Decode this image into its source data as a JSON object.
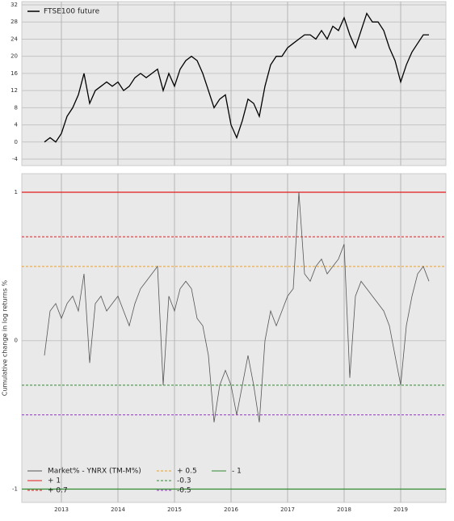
{
  "chart_data": [
    {
      "type": "line",
      "legend": "upper left",
      "grid": true,
      "xlim": [
        2012.3,
        2019.8
      ],
      "xticks": [
        2013,
        2014,
        2015,
        2016,
        2017,
        2018,
        2019
      ],
      "ylim": [
        -5.5,
        32.75
      ],
      "yticks": [
        -4,
        0,
        4,
        8,
        12,
        16,
        20,
        24,
        28,
        32
      ],
      "x": [
        2012.7,
        2012.8,
        2012.9,
        2013.0,
        2013.1,
        2013.2,
        2013.3,
        2013.4,
        2013.5,
        2013.6,
        2013.7,
        2013.8,
        2013.9,
        2014.0,
        2014.1,
        2014.2,
        2014.3,
        2014.4,
        2014.5,
        2014.6,
        2014.7,
        2014.8,
        2014.9,
        2015.0,
        2015.1,
        2015.2,
        2015.3,
        2015.4,
        2015.5,
        2015.6,
        2015.7,
        2015.8,
        2015.9,
        2016.0,
        2016.1,
        2016.2,
        2016.3,
        2016.4,
        2016.5,
        2016.6,
        2016.7,
        2016.8,
        2016.9,
        2017.0,
        2017.1,
        2017.2,
        2017.3,
        2017.4,
        2017.5,
        2017.6,
        2017.7,
        2017.8,
        2017.9,
        2018.0,
        2018.1,
        2018.2,
        2018.3,
        2018.4,
        2018.5,
        2018.6,
        2018.7,
        2018.8,
        2018.9,
        2019.0,
        2019.1,
        2019.2,
        2019.3,
        2019.4,
        2019.5
      ],
      "series": [
        {
          "name": "FTSE100 future",
          "color": "#000000",
          "values": [
            0,
            1,
            0,
            2,
            6,
            8,
            11,
            16,
            9,
            12,
            13,
            14,
            13,
            14,
            12,
            13,
            15,
            16,
            15,
            16,
            17,
            12,
            16,
            13,
            17,
            19,
            20,
            19,
            16,
            12,
            8,
            10,
            11,
            4,
            1,
            5,
            10,
            9,
            6,
            13,
            18,
            20,
            20,
            22,
            23,
            24,
            25,
            25,
            24,
            26,
            24,
            27,
            26,
            29,
            25,
            22,
            26,
            30,
            28,
            28,
            26,
            22,
            19,
            14,
            18,
            21,
            23,
            25,
            25
          ]
        }
      ]
    },
    {
      "type": "line",
      "legend": "lower left",
      "grid": true,
      "y_label": "Cumulative change in log returns %",
      "xlim": [
        2012.3,
        2019.8
      ],
      "xticks": [
        2013,
        2014,
        2015,
        2016,
        2017,
        2018,
        2019
      ],
      "ylim": [
        -1.09,
        1.125
      ],
      "yticks": [
        -1,
        0,
        1
      ],
      "x": [
        2012.7,
        2012.8,
        2012.9,
        2013.0,
        2013.1,
        2013.2,
        2013.3,
        2013.4,
        2013.5,
        2013.6,
        2013.7,
        2013.8,
        2013.9,
        2014.0,
        2014.1,
        2014.2,
        2014.3,
        2014.4,
        2014.5,
        2014.6,
        2014.7,
        2014.8,
        2014.9,
        2015.0,
        2015.1,
        2015.2,
        2015.3,
        2015.4,
        2015.5,
        2015.6,
        2015.7,
        2015.8,
        2015.9,
        2016.0,
        2016.1,
        2016.2,
        2016.3,
        2016.4,
        2016.5,
        2016.6,
        2016.7,
        2016.8,
        2016.9,
        2017.0,
        2017.1,
        2017.2,
        2017.3,
        2017.4,
        2017.5,
        2017.6,
        2017.7,
        2017.8,
        2017.9,
        2018.0,
        2018.1,
        2018.2,
        2018.3,
        2018.4,
        2018.5,
        2018.6,
        2018.7,
        2018.8,
        2018.9,
        2019.0,
        2019.1,
        2019.2,
        2019.3,
        2019.4,
        2019.5
      ],
      "series": [
        {
          "name": "Market% - YNRX (TM-M%)",
          "color": "#555555",
          "values": [
            -0.1,
            0.2,
            0.25,
            0.15,
            0.25,
            0.3,
            0.2,
            0.45,
            -0.15,
            0.25,
            0.3,
            0.2,
            0.25,
            0.3,
            0.2,
            0.1,
            0.25,
            0.35,
            0.4,
            0.45,
            0.5,
            -0.3,
            0.3,
            0.2,
            0.35,
            0.4,
            0.35,
            0.15,
            0.1,
            -0.1,
            -0.55,
            -0.3,
            -0.2,
            -0.3,
            -0.5,
            -0.3,
            -0.1,
            -0.3,
            -0.55,
            0.0,
            0.2,
            0.1,
            0.2,
            0.3,
            0.35,
            1.0,
            0.45,
            0.4,
            0.5,
            0.55,
            0.45,
            0.5,
            0.55,
            0.65,
            -0.25,
            0.3,
            0.4,
            0.35,
            0.3,
            0.25,
            0.2,
            0.1,
            -0.1,
            -0.3,
            0.1,
            0.3,
            0.45,
            0.5,
            0.4
          ]
        }
      ],
      "hlines": [
        {
          "name": "+ 1",
          "value": 1,
          "color": "#e41a1c",
          "dashed": false
        },
        {
          "name": "+ 0.7",
          "value": 0.7,
          "color": "#e41a1c",
          "dashed": true
        },
        {
          "name": "+ 0.5",
          "value": 0.5,
          "color": "#f0a020",
          "dashed": true
        },
        {
          "name": "-0.3",
          "value": -0.3,
          "color": "#2e8b2e",
          "dashed": true
        },
        {
          "name": "-0.5",
          "value": -0.5,
          "color": "#9932cc",
          "dashed": true
        },
        {
          "name": "- 1",
          "value": -1,
          "color": "#2e8b2e",
          "dashed": false
        }
      ]
    }
  ]
}
